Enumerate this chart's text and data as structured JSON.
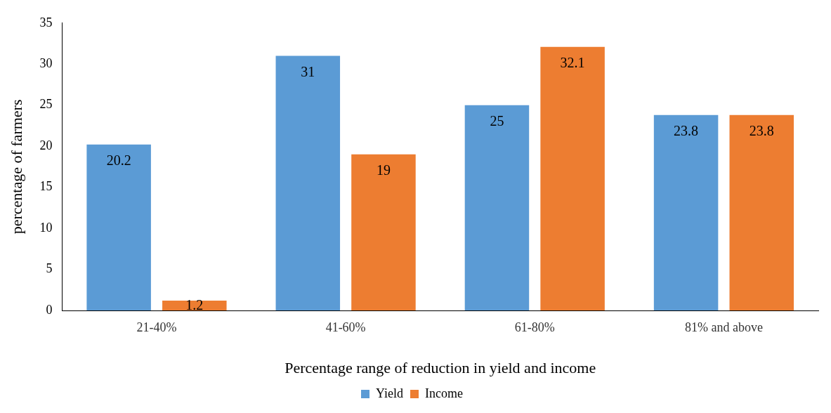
{
  "chart_data": {
    "type": "bar",
    "xlabel": "Percentage range of reduction in yield and income",
    "ylabel": "percentage of farmers",
    "categories": [
      "21-40%",
      "41-60%",
      "61-80%",
      "81% and above"
    ],
    "series": [
      {
        "name": "Yield",
        "color": "#5b9bd5",
        "values": [
          20.2,
          31,
          25,
          23.8
        ]
      },
      {
        "name": "Income",
        "color": "#ed7d31",
        "values": [
          1.2,
          19,
          32.1,
          23.8
        ]
      }
    ],
    "ylim": [
      0,
      35
    ],
    "yticks": [
      0,
      5,
      10,
      15,
      20,
      25,
      30,
      35
    ],
    "grid": false,
    "legend": "bottom",
    "data_labels": true
  }
}
